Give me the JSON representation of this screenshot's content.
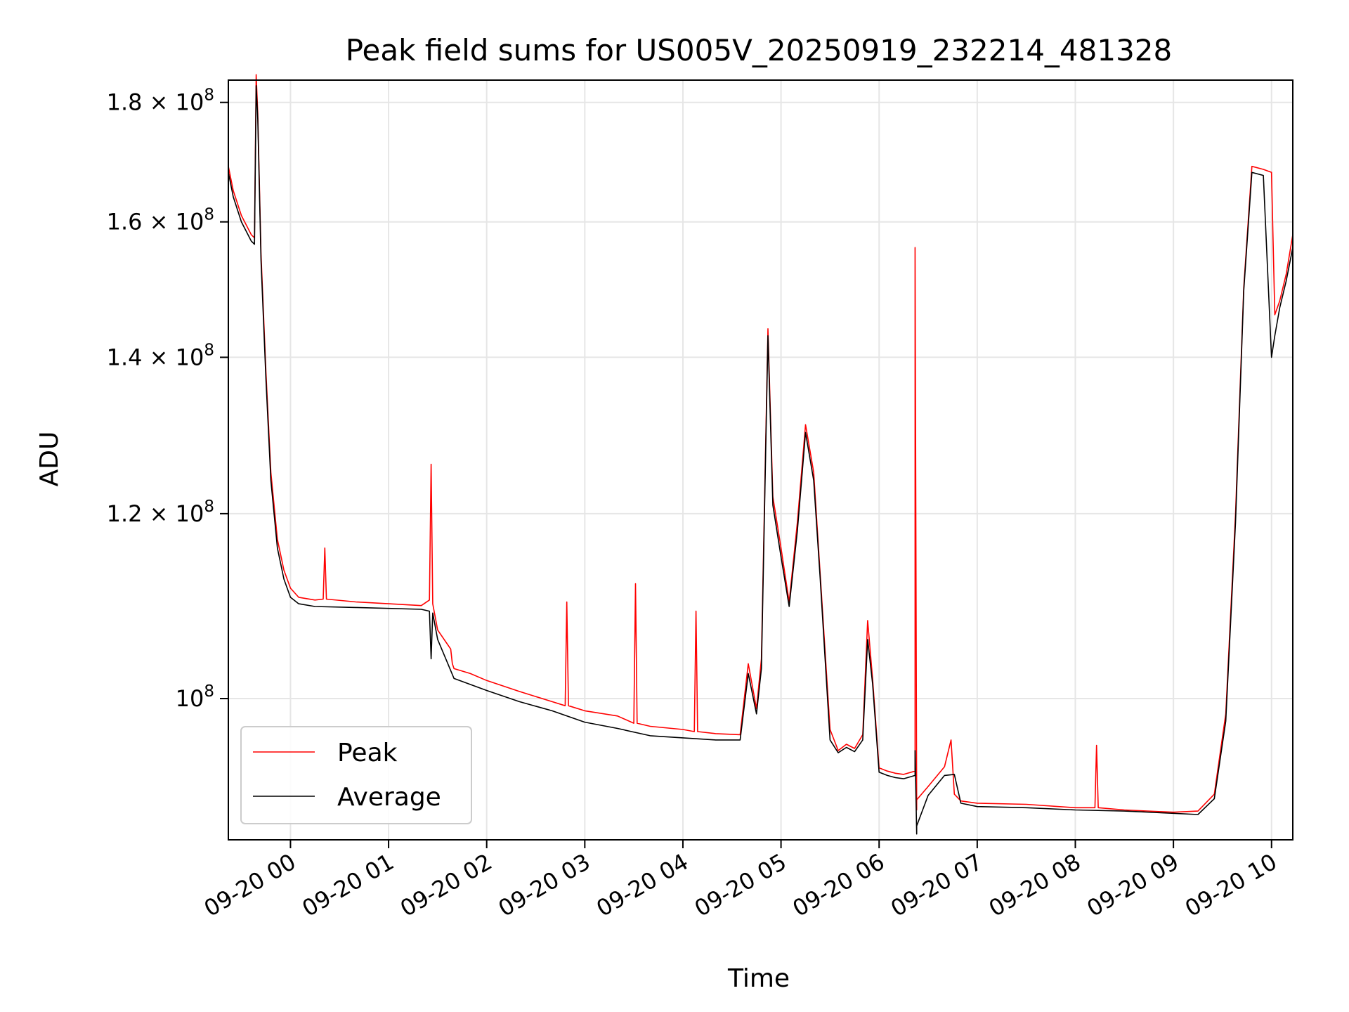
{
  "chart_data": {
    "type": "line",
    "title": "Peak field sums for US005V_20250919_232214_481328",
    "xlabel": "Time",
    "ylabel": "ADU",
    "y_scale": "log",
    "grid": true,
    "legend_position": "bottom-left",
    "xlim": [
      "2025-09-19 23:22",
      "2025-09-20 10:13"
    ],
    "ylim": [
      87000000,
      184000000
    ],
    "x_ticks": [
      {
        "value": "2025-09-20 00:00",
        "label": "09-20 00"
      },
      {
        "value": "2025-09-20 01:00",
        "label": "09-20 01"
      },
      {
        "value": "2025-09-20 02:00",
        "label": "09-20 02"
      },
      {
        "value": "2025-09-20 03:00",
        "label": "09-20 03"
      },
      {
        "value": "2025-09-20 04:00",
        "label": "09-20 04"
      },
      {
        "value": "2025-09-20 05:00",
        "label": "09-20 05"
      },
      {
        "value": "2025-09-20 06:00",
        "label": "09-20 06"
      },
      {
        "value": "2025-09-20 07:00",
        "label": "09-20 07"
      },
      {
        "value": "2025-09-20 08:00",
        "label": "09-20 08"
      },
      {
        "value": "2025-09-20 09:00",
        "label": "09-20 09"
      },
      {
        "value": "2025-09-20 10:00",
        "label": "09-20 10"
      }
    ],
    "y_ticks": [
      {
        "value": 100000000,
        "mantissa": "",
        "exponent": "8"
      },
      {
        "value": 120000000,
        "mantissa": "1.2",
        "exponent": "8"
      },
      {
        "value": 140000000,
        "mantissa": "1.4",
        "exponent": "8"
      },
      {
        "value": 160000000,
        "mantissa": "1.6",
        "exponent": "8"
      },
      {
        "value": 180000000,
        "mantissa": "1.8",
        "exponent": "8"
      }
    ],
    "series": [
      {
        "name": "Peak",
        "color": "#ff0000",
        "x": [
          "2025-09-19 23:22",
          "2025-09-19 23:25",
          "2025-09-19 23:30",
          "2025-09-19 23:36",
          "2025-09-19 23:38",
          "2025-09-19 23:39",
          "2025-09-19 23:40",
          "2025-09-19 23:42",
          "2025-09-19 23:45",
          "2025-09-19 23:48",
          "2025-09-19 23:52",
          "2025-09-19 23:56",
          "2025-09-20 00:00",
          "2025-09-20 00:05",
          "2025-09-20 00:15",
          "2025-09-20 00:20",
          "2025-09-20 00:21",
          "2025-09-20 00:22",
          "2025-09-20 00:40",
          "2025-09-20 01:00",
          "2025-09-20 01:20",
          "2025-09-20 01:25",
          "2025-09-20 01:26",
          "2025-09-20 01:27",
          "2025-09-20 01:30",
          "2025-09-20 01:38",
          "2025-09-20 01:39",
          "2025-09-20 01:40",
          "2025-09-20 01:50",
          "2025-09-20 02:00",
          "2025-09-20 02:20",
          "2025-09-20 02:40",
          "2025-09-20 02:48",
          "2025-09-20 02:49",
          "2025-09-20 02:50",
          "2025-09-20 03:00",
          "2025-09-20 03:20",
          "2025-09-20 03:30",
          "2025-09-20 03:31",
          "2025-09-20 03:32",
          "2025-09-20 03:40",
          "2025-09-20 04:00",
          "2025-09-20 04:07",
          "2025-09-20 04:08",
          "2025-09-20 04:09",
          "2025-09-20 04:20",
          "2025-09-20 04:35",
          "2025-09-20 04:40",
          "2025-09-20 04:45",
          "2025-09-20 04:48",
          "2025-09-20 04:52",
          "2025-09-20 04:55",
          "2025-09-20 05:00",
          "2025-09-20 05:05",
          "2025-09-20 05:10",
          "2025-09-20 05:15",
          "2025-09-20 05:20",
          "2025-09-20 05:24",
          "2025-09-20 05:30",
          "2025-09-20 05:35",
          "2025-09-20 05:40",
          "2025-09-20 05:45",
          "2025-09-20 05:50",
          "2025-09-20 05:53",
          "2025-09-20 05:56",
          "2025-09-20 06:00",
          "2025-09-20 06:05",
          "2025-09-20 06:10",
          "2025-09-20 06:15",
          "2025-09-20 06:22",
          "2025-09-20 06:22",
          "2025-09-20 06:23",
          "2025-09-20 06:23",
          "2025-09-20 06:30",
          "2025-09-20 06:40",
          "2025-09-20 06:44",
          "2025-09-20 06:46",
          "2025-09-20 06:50",
          "2025-09-20 07:00",
          "2025-09-20 07:30",
          "2025-09-20 08:00",
          "2025-09-20 08:12",
          "2025-09-20 08:13",
          "2025-09-20 08:14",
          "2025-09-20 08:30",
          "2025-09-20 09:00",
          "2025-09-20 09:15",
          "2025-09-20 09:25",
          "2025-09-20 09:32",
          "2025-09-20 09:38",
          "2025-09-20 09:43",
          "2025-09-20 09:48",
          "2025-09-20 09:55",
          "2025-09-20 10:00",
          "2025-09-20 10:02",
          "2025-09-20 10:05",
          "2025-09-20 10:09",
          "2025-09-20 10:13"
        ],
        "y": [
          169000000,
          165000000,
          161000000,
          158000000,
          157500000,
          185000000,
          178000000,
          155000000,
          138000000,
          125000000,
          117000000,
          113500000,
          111500000,
          110500000,
          110200000,
          110300000,
          116000000,
          110300000,
          110000000,
          109800000,
          109600000,
          110200000,
          126000000,
          109800000,
          107000000,
          105000000,
          103500000,
          103000000,
          102500000,
          101800000,
          100700000,
          99700000,
          99300000,
          110000000,
          99300000,
          98800000,
          98300000,
          97600000,
          112000000,
          97600000,
          97300000,
          97000000,
          96800000,
          109000000,
          96800000,
          96600000,
          96500000,
          103500000,
          99000000,
          104000000,
          144000000,
          122000000,
          116000000,
          110000000,
          119000000,
          131000000,
          125000000,
          113000000,
          97000000,
          95000000,
          95600000,
          95200000,
          96500000,
          108000000,
          102000000,
          93400000,
          93100000,
          92900000,
          92800000,
          93100000,
          156000000,
          89600000,
          90500000,
          91700000,
          93500000,
          96000000,
          91000000,
          90400000,
          90200000,
          90100000,
          89800000,
          89800000,
          95500000,
          89800000,
          89600000,
          89400000,
          89500000,
          91000000,
          98500000,
          120000000,
          150000000,
          169000000,
          168500000,
          168000000,
          146000000,
          148000000,
          152000000,
          158000000
        ]
      },
      {
        "name": "Average",
        "color": "#000000",
        "x": [
          "2025-09-19 23:22",
          "2025-09-19 23:25",
          "2025-09-19 23:30",
          "2025-09-19 23:36",
          "2025-09-19 23:38",
          "2025-09-19 23:39",
          "2025-09-19 23:40",
          "2025-09-19 23:42",
          "2025-09-19 23:45",
          "2025-09-19 23:48",
          "2025-09-19 23:52",
          "2025-09-19 23:56",
          "2025-09-20 00:00",
          "2025-09-20 00:05",
          "2025-09-20 00:15",
          "2025-09-20 00:40",
          "2025-09-20 01:00",
          "2025-09-20 01:20",
          "2025-09-20 01:25",
          "2025-09-20 01:26",
          "2025-09-20 01:27",
          "2025-09-20 01:30",
          "2025-09-20 01:40",
          "2025-09-20 02:00",
          "2025-09-20 02:20",
          "2025-09-20 02:40",
          "2025-09-20 03:00",
          "2025-09-20 03:20",
          "2025-09-20 03:40",
          "2025-09-20 04:00",
          "2025-09-20 04:20",
          "2025-09-20 04:35",
          "2025-09-20 04:40",
          "2025-09-20 04:45",
          "2025-09-20 04:48",
          "2025-09-20 04:52",
          "2025-09-20 04:55",
          "2025-09-20 05:00",
          "2025-09-20 05:05",
          "2025-09-20 05:10",
          "2025-09-20 05:15",
          "2025-09-20 05:20",
          "2025-09-20 05:24",
          "2025-09-20 05:30",
          "2025-09-20 05:35",
          "2025-09-20 05:40",
          "2025-09-20 05:45",
          "2025-09-20 05:50",
          "2025-09-20 05:53",
          "2025-09-20 05:56",
          "2025-09-20 06:00",
          "2025-09-20 06:05",
          "2025-09-20 06:10",
          "2025-09-20 06:15",
          "2025-09-20 06:22",
          "2025-09-20 06:22",
          "2025-09-20 06:23",
          "2025-09-20 06:23",
          "2025-09-20 06:30",
          "2025-09-20 06:40",
          "2025-09-20 06:46",
          "2025-09-20 06:50",
          "2025-09-20 07:00",
          "2025-09-20 07:30",
          "2025-09-20 08:00",
          "2025-09-20 08:30",
          "2025-09-20 09:00",
          "2025-09-20 09:15",
          "2025-09-20 09:25",
          "2025-09-20 09:32",
          "2025-09-20 09:38",
          "2025-09-20 09:43",
          "2025-09-20 09:48",
          "2025-09-20 09:55",
          "2025-09-20 10:00",
          "2025-09-20 10:02",
          "2025-09-20 10:05",
          "2025-09-20 10:09",
          "2025-09-20 10:13"
        ],
        "y": [
          168000000,
          164000000,
          160000000,
          157000000,
          156500000,
          183000000,
          177000000,
          154000000,
          137000000,
          124000000,
          116000000,
          112500000,
          110500000,
          109800000,
          109500000,
          109400000,
          109300000,
          109200000,
          109000000,
          104000000,
          108800000,
          106000000,
          102000000,
          100800000,
          99700000,
          98800000,
          97700000,
          97100000,
          96400000,
          96200000,
          96000000,
          96000000,
          102500000,
          98500000,
          103000000,
          143000000,
          121000000,
          115000000,
          109500000,
          118000000,
          130000000,
          124000000,
          112500000,
          96000000,
          94800000,
          95300000,
          94900000,
          96000000,
          106000000,
          101500000,
          93000000,
          92700000,
          92500000,
          92400000,
          92700000,
          95000000,
          87500000,
          88200000,
          90900000,
          92700000,
          92800000,
          90200000,
          89900000,
          89800000,
          89600000,
          89500000,
          89300000,
          89200000,
          90600000,
          97800000,
          119000000,
          149500000,
          168000000,
          167500000,
          140000000,
          143000000,
          147000000,
          151000000,
          156000000
        ]
      }
    ]
  }
}
